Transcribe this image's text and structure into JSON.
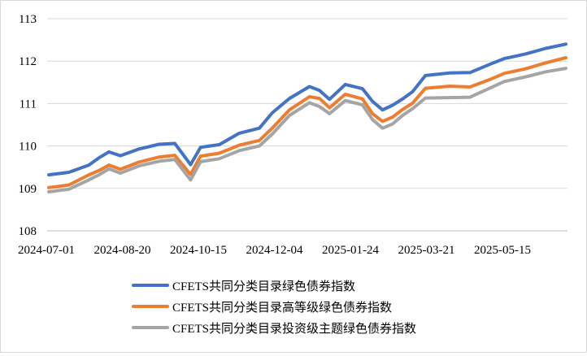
{
  "chart_data": {
    "type": "line",
    "title": "",
    "xlabel": "",
    "ylabel": "",
    "ylim": [
      108,
      113
    ],
    "yticks": [
      108,
      109,
      110,
      111,
      112,
      113
    ],
    "ytick_labels": [
      "108",
      "109",
      "110",
      "111",
      "112",
      "113"
    ],
    "xtick_labels": [
      "2024-07-01",
      "2024-08-20",
      "2024-10-15",
      "2024-12-04",
      "2025-01-24",
      "2025-03-21",
      "2025-05-15"
    ],
    "grid": "horizontal",
    "legend_position": "bottom",
    "x": [
      "2024-07-01",
      "2024-07-15",
      "2024-07-29",
      "2024-08-05",
      "2024-08-12",
      "2024-08-20",
      "2024-09-02",
      "2024-09-16",
      "2024-09-27",
      "2024-10-08",
      "2024-10-15",
      "2024-10-28",
      "2024-11-11",
      "2024-11-25",
      "2024-12-04",
      "2024-12-16",
      "2024-12-30",
      "2025-01-06",
      "2025-01-13",
      "2025-01-24",
      "2025-02-05",
      "2025-02-12",
      "2025-02-19",
      "2025-02-26",
      "2025-03-05",
      "2025-03-12",
      "2025-03-21",
      "2025-04-07",
      "2025-04-21",
      "2025-05-06",
      "2025-05-15",
      "2025-05-30",
      "2025-06-13",
      "2025-06-27"
    ],
    "series": [
      {
        "name": "CFETS共同分类目录绿色债券指数",
        "color": "#4472c4",
        "values": [
          109.32,
          109.38,
          109.55,
          109.72,
          109.86,
          109.77,
          109.93,
          110.04,
          110.06,
          109.56,
          109.97,
          110.03,
          110.3,
          110.42,
          110.78,
          111.12,
          111.4,
          111.31,
          111.1,
          111.45,
          111.35,
          111.05,
          110.85,
          110.96,
          111.11,
          111.28,
          111.66,
          111.72,
          111.73,
          111.94,
          112.06,
          112.17,
          112.3,
          112.4
        ]
      },
      {
        "name": "CFETS共同分类目录高等级绿色债券指数",
        "color": "#ed7d31",
        "values": [
          109.02,
          109.08,
          109.32,
          109.42,
          109.55,
          109.45,
          109.62,
          109.74,
          109.78,
          109.33,
          109.76,
          109.83,
          110.02,
          110.13,
          110.42,
          110.85,
          111.16,
          111.12,
          110.9,
          111.22,
          111.11,
          110.76,
          110.58,
          110.68,
          110.86,
          111.01,
          111.36,
          111.41,
          111.39,
          111.58,
          111.71,
          111.82,
          111.96,
          112.08
        ]
      },
      {
        "name": "CFETS共同分类目录投资级主题绿色债券指数",
        "color": "#a5a5a5",
        "values": [
          108.92,
          108.98,
          109.2,
          109.32,
          109.46,
          109.36,
          109.53,
          109.64,
          109.68,
          109.2,
          109.63,
          109.7,
          109.89,
          110.0,
          110.28,
          110.72,
          111.02,
          110.93,
          110.76,
          111.07,
          110.97,
          110.62,
          110.42,
          110.52,
          110.72,
          110.88,
          111.13,
          111.14,
          111.15,
          111.38,
          111.52,
          111.63,
          111.75,
          111.83
        ]
      }
    ]
  }
}
